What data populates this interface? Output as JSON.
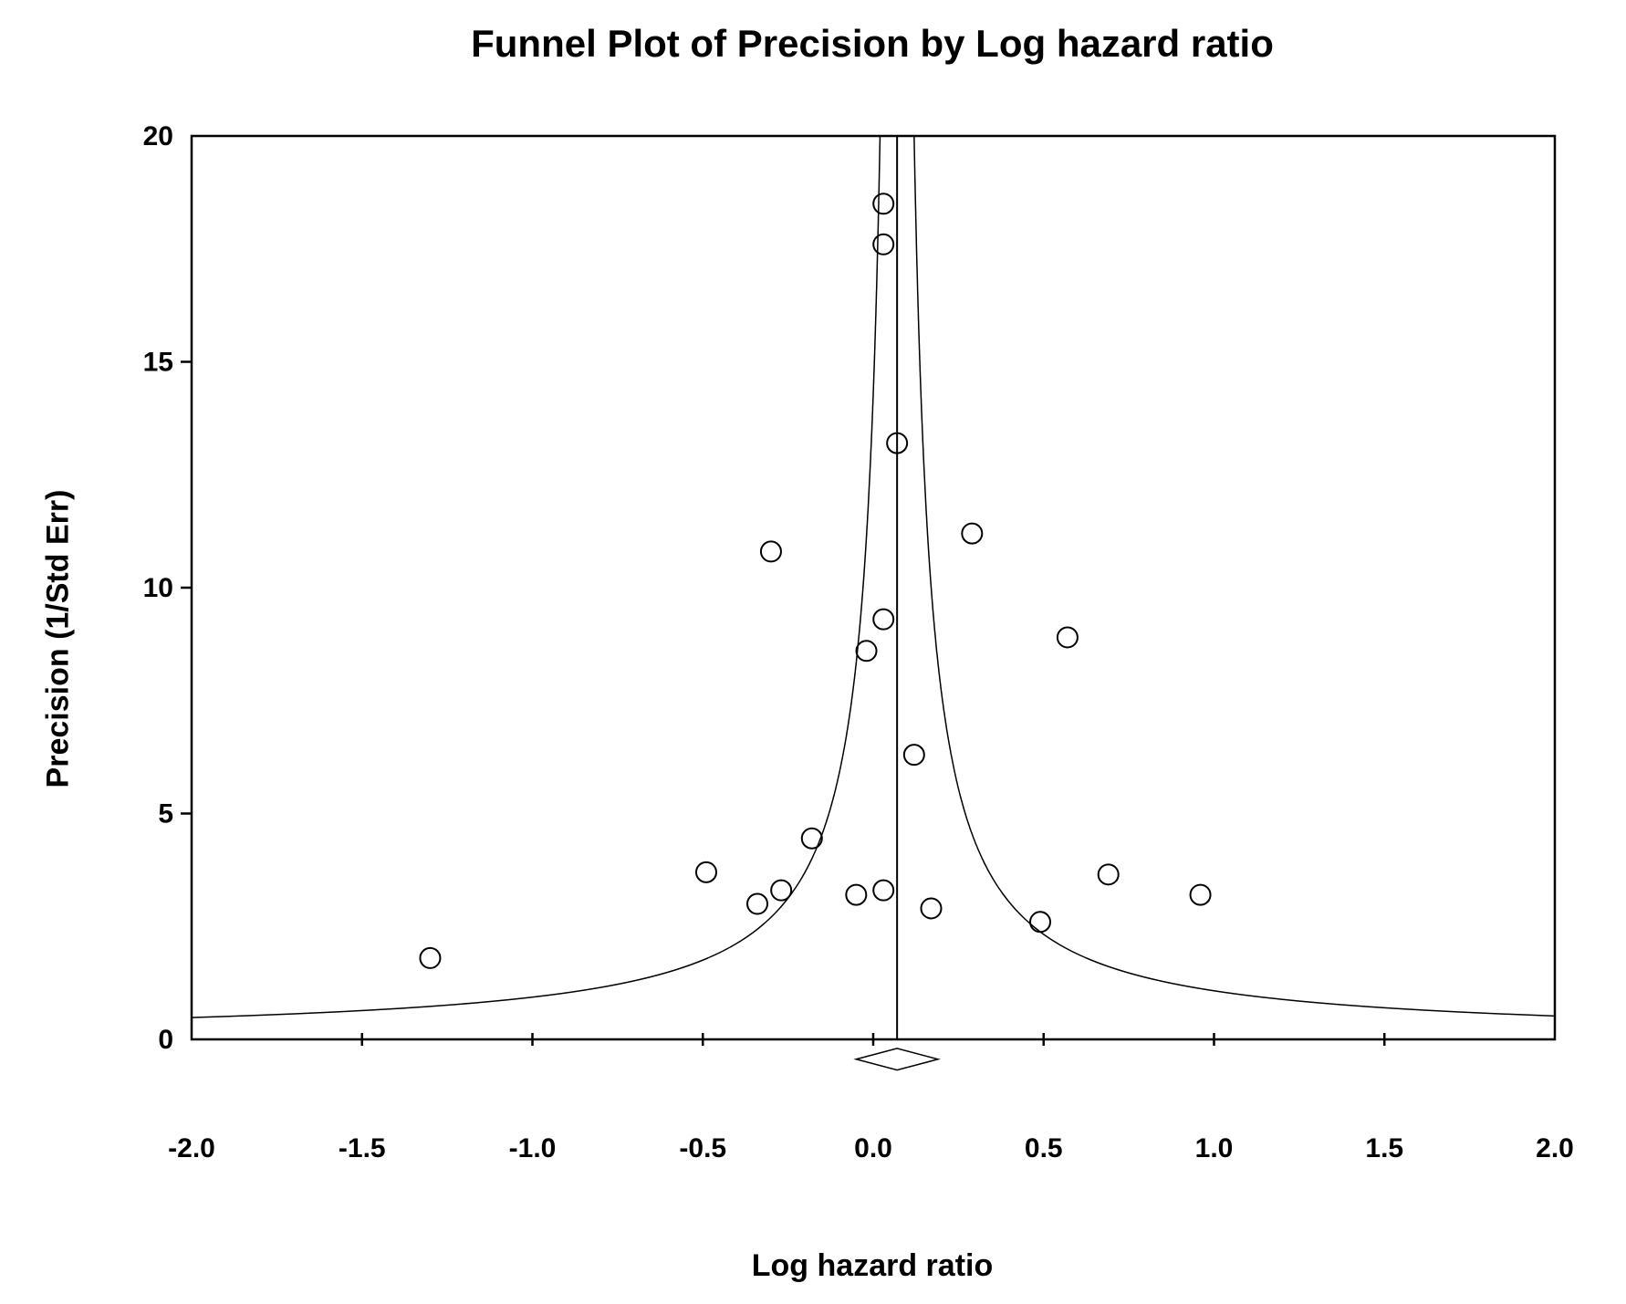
{
  "chart_data": {
    "type": "scatter",
    "title": "Funnel Plot of Precision by Log hazard ratio",
    "xlabel": "Log hazard ratio",
    "ylabel": "Precision (1/Std Err)",
    "xlim": [
      -2.0,
      2.0
    ],
    "ylim": [
      0,
      20
    ],
    "x_ticks": [
      -1.5,
      -1.0,
      -0.5,
      0.0,
      0.5,
      1.0,
      1.5
    ],
    "x_tick_labels": [
      "-2.0",
      "-1.5",
      "-1.0",
      "-0.5",
      "0.0",
      "0.5",
      "1.0",
      "1.5",
      "2.0"
    ],
    "x_tick_label_positions": [
      -2.0,
      -1.5,
      -1.0,
      -0.5,
      0.0,
      0.5,
      1.0,
      1.5,
      2.0
    ],
    "y_ticks": [
      5,
      10,
      15
    ],
    "y_tick_labels": [
      "0",
      "5",
      "10",
      "15",
      "20"
    ],
    "y_tick_label_positions": [
      0,
      5,
      10,
      15,
      20
    ],
    "grid": false,
    "legend": null,
    "marker": "open-circle",
    "colors": {
      "line": "#000000",
      "background": "#ffffff"
    },
    "points": [
      {
        "x": 0.03,
        "y": 18.5
      },
      {
        "x": 0.03,
        "y": 17.6
      },
      {
        "x": 0.07,
        "y": 13.2
      },
      {
        "x": 0.29,
        "y": 11.2
      },
      {
        "x": -0.3,
        "y": 10.8
      },
      {
        "x": 0.03,
        "y": 9.3
      },
      {
        "x": 0.57,
        "y": 8.9
      },
      {
        "x": -0.02,
        "y": 8.6
      },
      {
        "x": 0.12,
        "y": 6.3
      },
      {
        "x": -0.18,
        "y": 4.45
      },
      {
        "x": -0.49,
        "y": 3.7
      },
      {
        "x": 0.69,
        "y": 3.65
      },
      {
        "x": -0.27,
        "y": 3.3
      },
      {
        "x": 0.03,
        "y": 3.3
      },
      {
        "x": -0.05,
        "y": 3.2
      },
      {
        "x": 0.96,
        "y": 3.2
      },
      {
        "x": -0.34,
        "y": 3.0
      },
      {
        "x": 0.17,
        "y": 2.9
      },
      {
        "x": 0.49,
        "y": 2.6
      },
      {
        "x": -1.3,
        "y": 1.8
      }
    ],
    "funnel": {
      "center_x": 0.07,
      "half_width_per_unit_se": 1.0,
      "top_precision": 20
    },
    "combined_effect_line_x": 0.07,
    "diamond": {
      "center_x": 0.07,
      "half_width_x": 0.12,
      "center_y": -0.44,
      "half_height_y": 0.24
    }
  }
}
